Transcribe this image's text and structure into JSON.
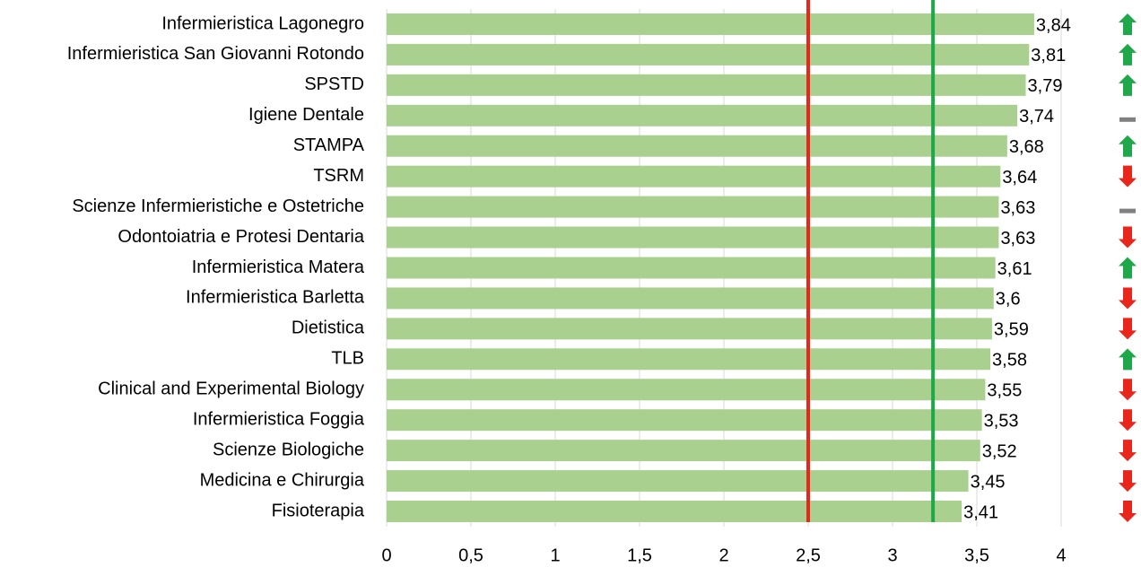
{
  "chart_data": {
    "type": "barh",
    "categories": [
      "Infermieristica Lagonegro",
      "Infermieristica San Giovanni Rotondo",
      "SPSTD",
      "Igiene Dentale",
      "STAMPA",
      "TSRM",
      "Scienze Infermieristiche e Ostetriche",
      "Odontoiatria e Protesi Dentaria",
      "Infermieristica Matera",
      "Infermieristica Barletta",
      "Dietistica",
      "TLB",
      "Clinical and Experimental Biology",
      "Infermieristica Foggia",
      "Scienze Biologiche",
      "Medicina e Chirurgia",
      "Fisioterapia"
    ],
    "values": [
      3.84,
      3.81,
      3.79,
      3.74,
      3.68,
      3.64,
      3.63,
      3.63,
      3.61,
      3.6,
      3.59,
      3.58,
      3.55,
      3.53,
      3.52,
      3.45,
      3.41
    ],
    "value_labels": [
      "3,84",
      "3,81",
      "3,79",
      "3,74",
      "3,68",
      "3,64",
      "3,63",
      "3,63",
      "3,61",
      "3,6",
      "3,59",
      "3,58",
      "3,55",
      "3,53",
      "3,52",
      "3,45",
      "3,41"
    ],
    "color": "#a9d08e",
    "xlim": [
      0,
      4
    ],
    "xticks": [
      0,
      {
        "value": 0.5,
        "label": "0,5"
      },
      1,
      {
        "value": 1.5,
        "label": "1,5"
      },
      2,
      {
        "value": 2.5,
        "label": "2,5"
      },
      3,
      {
        "value": 3.5,
        "label": "3,5"
      },
      4
    ],
    "grid": true,
    "reference_lines": [
      {
        "value": 2.5,
        "color": "#e8261c"
      },
      {
        "value": 3.24,
        "color": "#1fa84a"
      }
    ],
    "trend": [
      "up",
      "up",
      "up",
      "flat",
      "up",
      "down",
      "flat",
      "down",
      "up",
      "down",
      "down",
      "up",
      "down",
      "down",
      "down",
      "down",
      "down"
    ]
  }
}
